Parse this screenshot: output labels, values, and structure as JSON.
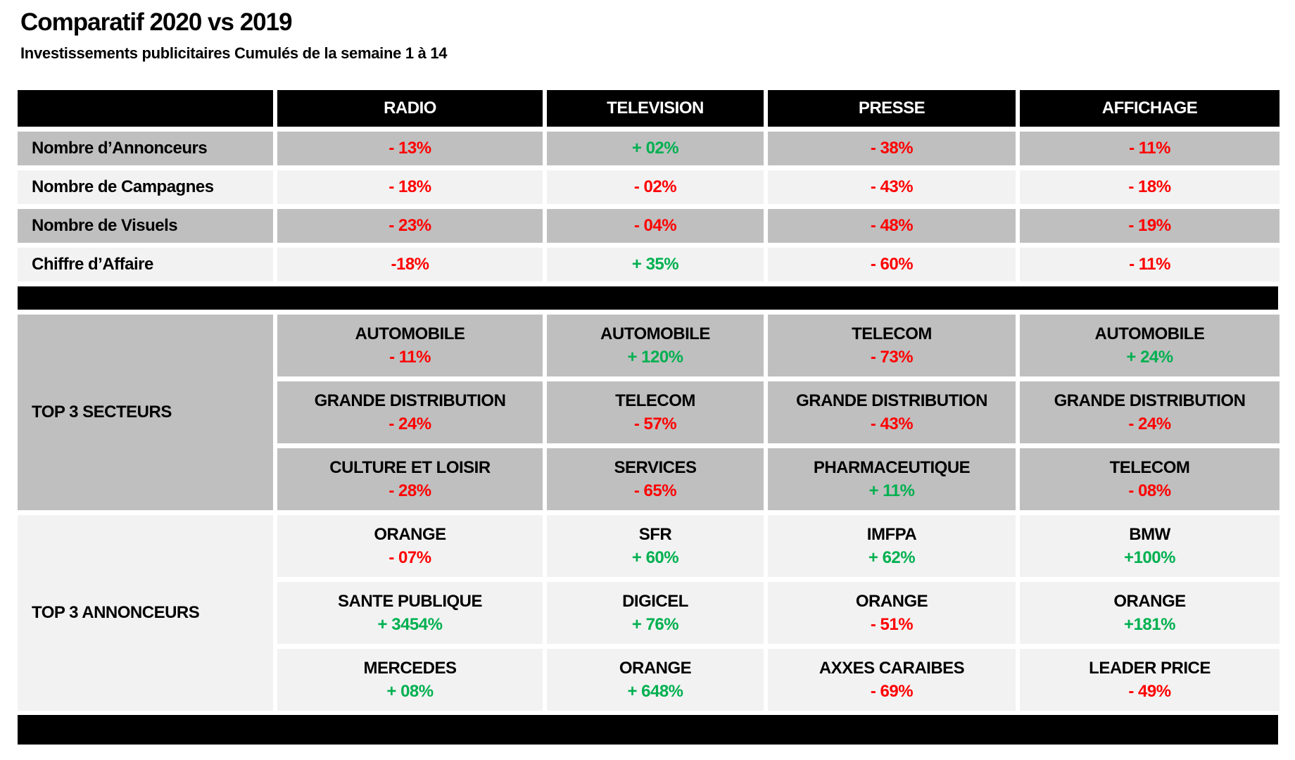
{
  "title": "Comparatif 2020 vs 2019",
  "subtitle": "Investissements publicitaires Cumulés de la semaine 1 à 14",
  "colors": {
    "positive": "#00B050",
    "negative": "#FF0000",
    "header_bg": "#000000",
    "header_text": "#FFFFFF",
    "row_dark": "#BFBFBF",
    "row_light": "#F2F2F2"
  },
  "table": {
    "columns": [
      "RADIO",
      "TELEVISION",
      "PRESSE",
      "AFFICHAGE"
    ],
    "metric_rows": [
      {
        "label": "Nombre d’Annonceurs",
        "values": [
          {
            "text": "- 13%",
            "trend": "negative"
          },
          {
            "text": "+ 02%",
            "trend": "positive"
          },
          {
            "text": "- 38%",
            "trend": "negative"
          },
          {
            "text": "- 11%",
            "trend": "negative"
          }
        ]
      },
      {
        "label": "Nombre de Campagnes",
        "values": [
          {
            "text": "- 18%",
            "trend": "negative"
          },
          {
            "text": "- 02%",
            "trend": "negative"
          },
          {
            "text": "- 43%",
            "trend": "negative"
          },
          {
            "text": "- 18%",
            "trend": "negative"
          }
        ]
      },
      {
        "label": "Nombre de Visuels",
        "values": [
          {
            "text": "- 23%",
            "trend": "negative"
          },
          {
            "text": "- 04%",
            "trend": "negative"
          },
          {
            "text": "- 48%",
            "trend": "negative"
          },
          {
            "text": "- 19%",
            "trend": "negative"
          }
        ]
      },
      {
        "label": "Chiffre d’Affaire",
        "values": [
          {
            "text": "-18%",
            "trend": "negative"
          },
          {
            "text": "+ 35%",
            "trend": "positive"
          },
          {
            "text": "- 60%",
            "trend": "negative"
          },
          {
            "text": "- 11%",
            "trend": "negative"
          }
        ]
      }
    ],
    "top_secteurs": {
      "label": "TOP 3 SECTEURS",
      "rows": [
        [
          {
            "name": "AUTOMOBILE",
            "pct": "- 11%",
            "trend": "negative"
          },
          {
            "name": "AUTOMOBILE",
            "pct": "+ 120%",
            "trend": "positive"
          },
          {
            "name": "TELECOM",
            "pct": "- 73%",
            "trend": "negative"
          },
          {
            "name": "AUTOMOBILE",
            "pct": "+ 24%",
            "trend": "positive"
          }
        ],
        [
          {
            "name": "GRANDE DISTRIBUTION",
            "pct": "- 24%",
            "trend": "negative"
          },
          {
            "name": "TELECOM",
            "pct": "- 57%",
            "trend": "negative"
          },
          {
            "name": "GRANDE DISTRIBUTION",
            "pct": "- 43%",
            "trend": "negative"
          },
          {
            "name": "GRANDE DISTRIBUTION",
            "pct": "- 24%",
            "trend": "negative"
          }
        ],
        [
          {
            "name": "CULTURE ET LOISIR",
            "pct": "- 28%",
            "trend": "negative"
          },
          {
            "name": "SERVICES",
            "pct": "- 65%",
            "trend": "negative"
          },
          {
            "name": "PHARMACEUTIQUE",
            "pct": "+ 11%",
            "trend": "positive"
          },
          {
            "name": "TELECOM",
            "pct": "- 08%",
            "trend": "negative"
          }
        ]
      ]
    },
    "top_annonceurs": {
      "label": "TOP 3 ANNONCEURS",
      "rows": [
        [
          {
            "name": "ORANGE",
            "pct": "- 07%",
            "trend": "negative"
          },
          {
            "name": "SFR",
            "pct": "+ 60%",
            "trend": "positive"
          },
          {
            "name": "IMFPA",
            "pct": "+ 62%",
            "trend": "positive"
          },
          {
            "name": "BMW",
            "pct": "+100%",
            "trend": "positive"
          }
        ],
        [
          {
            "name": "SANTE PUBLIQUE",
            "pct": "+ 3454%",
            "trend": "positive"
          },
          {
            "name": "DIGICEL",
            "pct": "+ 76%",
            "trend": "positive"
          },
          {
            "name": "ORANGE",
            "pct": "- 51%",
            "trend": "negative"
          },
          {
            "name": "ORANGE",
            "pct": "+181%",
            "trend": "positive"
          }
        ],
        [
          {
            "name": "MERCEDES",
            "pct": "+ 08%",
            "trend": "positive"
          },
          {
            "name": "ORANGE",
            "pct": "+ 648%",
            "trend": "positive"
          },
          {
            "name": "AXXES CARAIBES",
            "pct": "- 69%",
            "trend": "negative"
          },
          {
            "name": "LEADER PRICE",
            "pct": "- 49%",
            "trend": "negative"
          }
        ]
      ]
    }
  }
}
